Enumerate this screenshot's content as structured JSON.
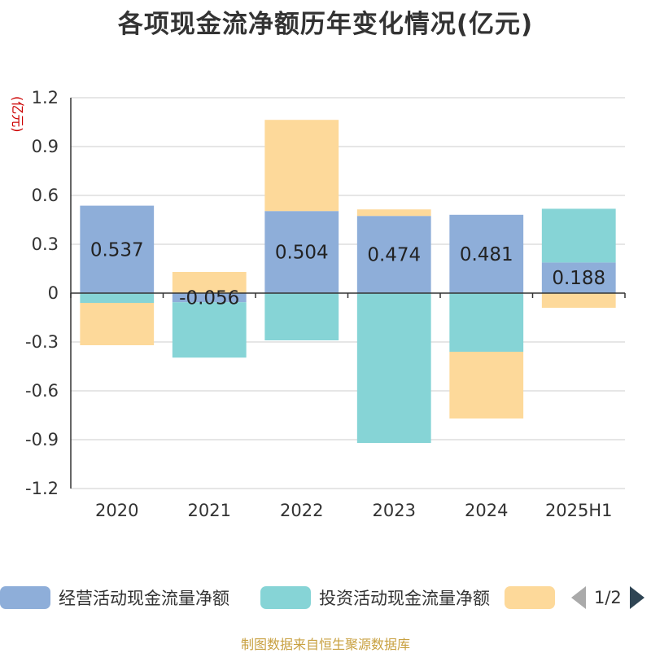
{
  "title": "各项现金流净额历年变化情况(亿元)",
  "source": "制图数据来自恒生聚源数据库",
  "legend": {
    "page_text": "1/2",
    "prev_icon": "triangle-left-icon",
    "next_icon": "triangle-right-icon"
  },
  "colors": {
    "operating": "#8eaed9",
    "investing": "#86d4d6",
    "financing": "#fdd99a",
    "axis": "#333333",
    "grid": "#cccccc",
    "ylabel": "#cc0000",
    "source": "#c8a040"
  },
  "chart_data": {
    "type": "bar",
    "stacked": true,
    "title": "各项现金流净额历年变化情况(亿元)",
    "ylabel": "(亿元)",
    "xlabel": "",
    "ylim": [
      -1.2,
      1.2
    ],
    "yticks": [
      "1.2",
      "0.9",
      "0.6",
      "0.3",
      "0",
      "-0.3",
      "-0.6",
      "-0.9",
      "-1.2"
    ],
    "grid": true,
    "legend_position": "bottom",
    "categories": [
      "2020",
      "2021",
      "2022",
      "2023",
      "2024",
      "2025H1"
    ],
    "series": [
      {
        "name": "经营活动现金流量净额",
        "color": "#8eaed9",
        "values": [
          0.537,
          -0.056,
          0.504,
          0.474,
          0.481,
          0.188
        ],
        "labels": [
          "0.537",
          "-0.056",
          "0.504",
          "0.474",
          "0.481",
          "0.188"
        ]
      },
      {
        "name": "投资活动现金流量净额",
        "color": "#86d4d6",
        "values": [
          -0.06,
          -0.34,
          -0.29,
          -0.92,
          -0.36,
          0.33
        ]
      },
      {
        "name": "",
        "color": "#fdd99a",
        "values": [
          -0.26,
          0.13,
          0.56,
          0.04,
          -0.41,
          -0.09
        ]
      }
    ]
  }
}
